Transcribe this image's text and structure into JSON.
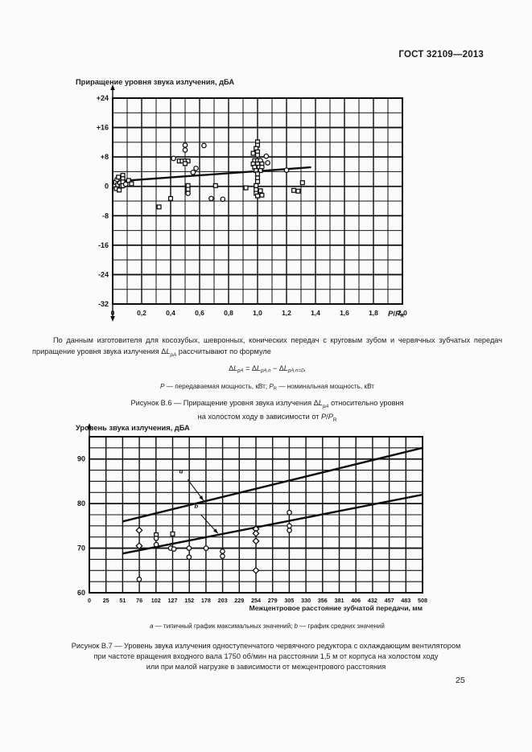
{
  "page": {
    "header": "ГОСТ 32109—2013",
    "page_number": "25"
  },
  "texts": {
    "caption_b7_lines": [
      "Рисунок В.7 — Уровень звука излучения одноступенчатого червячного редуктора с охлаждающим вентилятором",
      "при частоте вращения входного вала 1750 об/мин на расстоянии 1,5 м от корпуса на холостом ходу",
      "или при малой нагрузке в зависимости от межцентрового расстояния"
    ]
  },
  "rich_texts": {
    "paragraph": [
      {
        "t": "По данным изготовителя для косозубых, шевронных, конических передач с круговым зубом и червячных зубчатых передач приращение уровня звука излучения Δ"
      },
      {
        "t": "L",
        "i": true
      },
      {
        "t": "pA",
        "sub": true,
        "i": true
      },
      {
        "t": " рассчитывают по формуле"
      }
    ],
    "formula": [
      {
        "t": "Δ"
      },
      {
        "t": "L",
        "i": true
      },
      {
        "t": "pA",
        "sub": true,
        "i": true
      },
      {
        "t": " = Δ"
      },
      {
        "t": "L",
        "i": true
      },
      {
        "t": "pA,n",
        "sub": true,
        "i": true
      },
      {
        "t": " − Δ"
      },
      {
        "t": "L",
        "i": true
      },
      {
        "t": "pA,n=0",
        "sub": true,
        "i": true
      },
      {
        "t": ","
      }
    ],
    "power_note": [
      {
        "t": "P",
        "i": true
      },
      {
        "t": " — передаваемая мощность, кВт; "
      },
      {
        "t": "P",
        "i": true
      },
      {
        "t": "R",
        "sub": true
      },
      {
        "t": " — номинальная мощность, кВт"
      }
    ],
    "caption_b6_line1": [
      {
        "t": "Рисунок В.6 — Приращение уровня звука излучения Δ"
      },
      {
        "t": "L",
        "i": true
      },
      {
        "t": "pA",
        "sub": true,
        "i": true
      },
      {
        "t": " относительно уровня"
      }
    ],
    "caption_b6_line2": [
      {
        "t": "на холостом ходу в зависимости от "
      },
      {
        "t": "P",
        "i": true
      },
      {
        "t": "/"
      },
      {
        "t": "P",
        "i": true
      },
      {
        "t": "R",
        "sub": true
      }
    ],
    "xlabel1": [
      {
        "t": "P",
        "i": true
      },
      {
        "t": "/"
      },
      {
        "t": "P",
        "i": true
      },
      {
        "t": "R",
        "sub": true
      }
    ],
    "note_b7": [
      {
        "t": "a",
        "i": true
      },
      {
        "t": " — типичный график максимальных значений; "
      },
      {
        "t": "b",
        "i": true
      },
      {
        "t": " — график средних значений"
      }
    ]
  },
  "chart_data": [
    {
      "type": "scatter",
      "ylabel": "Приращение уровня звука излучения, дБА",
      "xlabel": "P/P_R",
      "xlim": [
        0,
        2.0
      ],
      "ylim": [
        -32,
        24
      ],
      "x_minor_step": 0.1,
      "x_major_step": 0.2,
      "y_minor_step": 4,
      "y_major_step": 8,
      "grid": true,
      "axis_arrows": [
        "up",
        "down"
      ],
      "x_ticks": [
        {
          "v": 0,
          "label": "0"
        },
        {
          "v": 0.2,
          "label": "0,2"
        },
        {
          "v": 0.4,
          "label": "0,4"
        },
        {
          "v": 0.6,
          "label": "0,6"
        },
        {
          "v": 0.8,
          "label": "0,8"
        },
        {
          "v": 1.0,
          "label": "1,0"
        },
        {
          "v": 1.2,
          "label": "1,2"
        },
        {
          "v": 1.4,
          "label": "1,4"
        },
        {
          "v": 1.6,
          "label": "1,6"
        },
        {
          "v": 1.8,
          "label": "1,8"
        },
        {
          "v": 2.0,
          "label": "2,0"
        }
      ],
      "y_ticks": [
        {
          "v": 24,
          "label": "+24"
        },
        {
          "v": 16,
          "label": "+16"
        },
        {
          "v": 8,
          "label": "+8"
        },
        {
          "v": 0,
          "label": "0"
        },
        {
          "v": -8,
          "label": "-8"
        },
        {
          "v": -16,
          "label": "-16"
        },
        {
          "v": -24,
          "label": "-24"
        },
        {
          "v": -32,
          "label": "-32"
        }
      ],
      "trend_lines": [
        {
          "name": "regression",
          "points": [
            [
              0,
              1.3
            ],
            [
              1.37,
              5.2
            ]
          ]
        }
      ],
      "annotations": [],
      "points": [
        [
          0.015,
          0.2,
          "s"
        ],
        [
          0.02,
          1.1,
          "s"
        ],
        [
          0.025,
          -0.6,
          "s"
        ],
        [
          0.03,
          1.9,
          "c"
        ],
        [
          0.035,
          0.4,
          "s"
        ],
        [
          0.04,
          2.5,
          "s"
        ],
        [
          0.045,
          -1.0,
          "s"
        ],
        [
          0.05,
          0.9,
          "c"
        ],
        [
          0.06,
          0.1,
          "s"
        ],
        [
          0.07,
          3.0,
          "s"
        ],
        [
          0.07,
          2.1,
          "s"
        ],
        [
          0.07,
          1.2,
          "s"
        ],
        [
          0.07,
          0.2,
          "s"
        ],
        [
          0.09,
          0.6,
          "c"
        ],
        [
          0.11,
          1.6,
          "s"
        ],
        [
          0.13,
          0.7,
          "s"
        ],
        [
          0.32,
          -5.6,
          "s"
        ],
        [
          0.4,
          -3.3,
          "s"
        ],
        [
          0.42,
          7.6,
          "c"
        ],
        [
          0.46,
          6.9,
          "s"
        ],
        [
          0.48,
          6.9,
          "s"
        ],
        [
          0.5,
          6.9,
          "s"
        ],
        [
          0.52,
          6.9,
          "s"
        ],
        [
          0.5,
          6.2,
          "s"
        ],
        [
          0.5,
          9.9,
          "c"
        ],
        [
          0.5,
          11.2,
          "c"
        ],
        [
          0.52,
          0.2,
          "s"
        ],
        [
          0.52,
          -0.8,
          "s"
        ],
        [
          0.52,
          -1.9,
          "c"
        ],
        [
          0.555,
          3.8,
          "c"
        ],
        [
          0.575,
          4.9,
          "c"
        ],
        [
          0.63,
          11.1,
          "c"
        ],
        [
          0.68,
          -3.3,
          "c"
        ],
        [
          0.76,
          -3.5,
          "c"
        ],
        [
          0.71,
          0.2,
          "s"
        ],
        [
          0.92,
          -0.4,
          "s"
        ],
        [
          1.0,
          12.1,
          "s"
        ],
        [
          1.0,
          11.2,
          "s"
        ],
        [
          0.99,
          10.3,
          "s"
        ],
        [
          1.0,
          9.4,
          "s"
        ],
        [
          0.97,
          9.0,
          "s"
        ],
        [
          1.0,
          8.5,
          "s"
        ],
        [
          1.06,
          8.2,
          "c"
        ],
        [
          0.98,
          7.0,
          "s"
        ],
        [
          1.0,
          7.0,
          "s"
        ],
        [
          1.02,
          7.0,
          "c"
        ],
        [
          0.97,
          6.1,
          "s"
        ],
        [
          1.0,
          6.1,
          "s"
        ],
        [
          1.03,
          6.1,
          "s"
        ],
        [
          0.98,
          5.2,
          "s"
        ],
        [
          1.01,
          5.2,
          "s"
        ],
        [
          1.03,
          5.2,
          "c"
        ],
        [
          0.99,
          4.3,
          "s"
        ],
        [
          1.02,
          4.3,
          "s"
        ],
        [
          1.0,
          3.4,
          "s"
        ],
        [
          1.0,
          2.3,
          "s"
        ],
        [
          1.0,
          1.3,
          "s"
        ],
        [
          0.99,
          0.2,
          "s"
        ],
        [
          0.99,
          -0.9,
          "s"
        ],
        [
          1.02,
          -1.2,
          "s"
        ],
        [
          0.99,
          -1.9,
          "s"
        ],
        [
          1.0,
          -2.6,
          "s"
        ],
        [
          1.03,
          -2.4,
          "s"
        ],
        [
          1.07,
          6.4,
          "c"
        ],
        [
          1.2,
          4.4,
          "c"
        ],
        [
          1.25,
          -1.1,
          "s"
        ],
        [
          1.28,
          -1.3,
          "s"
        ],
        [
          1.31,
          1.0,
          "s"
        ]
      ]
    },
    {
      "type": "scatter",
      "ylabel": "Уровень звука излучения, дБА",
      "xlabel": "Межцентровое расстояние зубчатой передачи, мм",
      "xlim": [
        0,
        508
      ],
      "ylim": [
        60,
        95
      ],
      "x_minor_step": 25.4,
      "x_major_step": 25.4,
      "y_minor_step": 2.5,
      "y_major_step": 10,
      "grid": true,
      "axis_arrows": [
        "up"
      ],
      "x_ticks": [
        {
          "v": 0,
          "label": "0"
        },
        {
          "v": 25.4,
          "label": "25"
        },
        {
          "v": 50.8,
          "label": "51"
        },
        {
          "v": 76.2,
          "label": "76"
        },
        {
          "v": 101.6,
          "label": "102"
        },
        {
          "v": 127,
          "label": "127"
        },
        {
          "v": 152.4,
          "label": "152"
        },
        {
          "v": 177.8,
          "label": "178"
        },
        {
          "v": 203.2,
          "label": "203"
        },
        {
          "v": 228.6,
          "label": "229"
        },
        {
          "v": 254,
          "label": "254"
        },
        {
          "v": 279.4,
          "label": "279"
        },
        {
          "v": 304.8,
          "label": "305"
        },
        {
          "v": 330.2,
          "label": "330"
        },
        {
          "v": 355.6,
          "label": "356"
        },
        {
          "v": 381,
          "label": "381"
        },
        {
          "v": 406.4,
          "label": "406"
        },
        {
          "v": 431.8,
          "label": "432"
        },
        {
          "v": 457.2,
          "label": "457"
        },
        {
          "v": 482.6,
          "label": "483"
        },
        {
          "v": 508,
          "label": "508"
        }
      ],
      "y_ticks": [
        {
          "v": 90,
          "label": "90"
        },
        {
          "v": 80,
          "label": "80"
        },
        {
          "v": 70,
          "label": "70"
        },
        {
          "v": 60,
          "label": "60"
        }
      ],
      "trend_lines": [
        {
          "name": "a",
          "points": [
            [
              51,
              76
            ],
            [
              508,
              92.5
            ]
          ]
        },
        {
          "name": "b",
          "points": [
            [
              51,
              68.8
            ],
            [
              508,
              82
            ]
          ]
        }
      ],
      "annotations": [
        {
          "label": "a",
          "text_at": [
            140,
            86.8
          ],
          "arrow_from": [
            150,
            85.4
          ],
          "arrow_to": [
            174,
            80.7
          ]
        },
        {
          "label": "b",
          "text_at": [
            163,
            78.9
          ],
          "arrow_from": [
            170,
            77.5
          ],
          "arrow_to": [
            196,
            73.3
          ]
        }
      ],
      "points": [
        [
          76,
          74,
          "d"
        ],
        [
          76,
          70.5,
          "d"
        ],
        [
          76,
          63,
          "c"
        ],
        [
          102,
          73,
          "s"
        ],
        [
          102,
          72.2,
          "c"
        ],
        [
          102,
          70.8,
          "c"
        ],
        [
          127,
          73.2,
          "s"
        ],
        [
          124,
          70,
          "c"
        ],
        [
          129,
          69.8,
          "c"
        ],
        [
          152,
          70,
          "c"
        ],
        [
          152,
          68,
          "c"
        ],
        [
          178,
          70,
          "c"
        ],
        [
          203,
          69.3,
          "c"
        ],
        [
          203,
          68.2,
          "c"
        ],
        [
          254,
          74.3,
          "d"
        ],
        [
          254,
          73.3,
          "d"
        ],
        [
          254,
          71.6,
          "d"
        ],
        [
          254,
          65,
          "d"
        ],
        [
          305,
          78,
          "c"
        ],
        [
          305,
          75,
          "c"
        ],
        [
          305,
          74,
          "c"
        ]
      ]
    }
  ]
}
